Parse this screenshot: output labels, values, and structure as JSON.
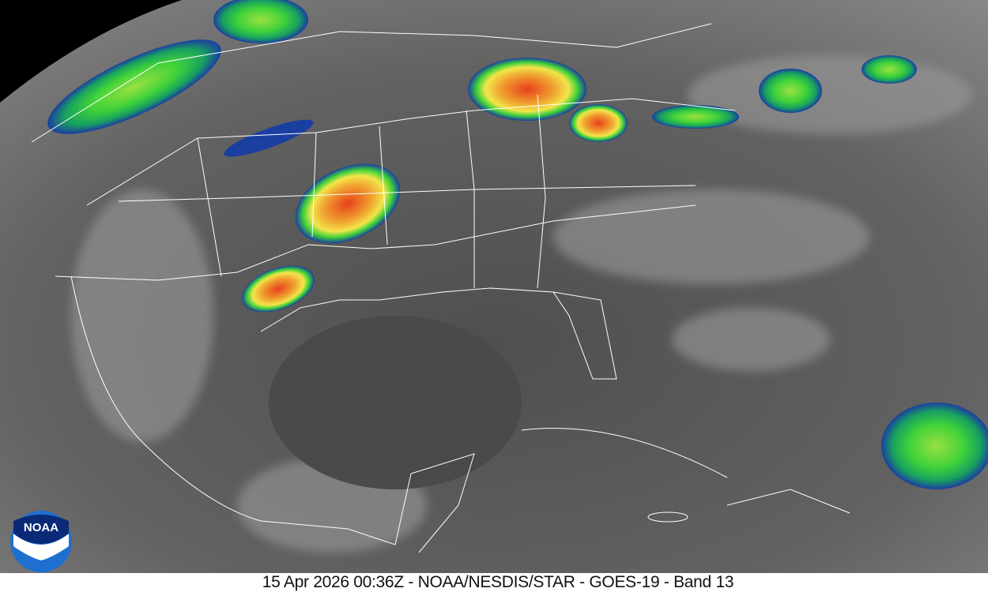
{
  "caption": "15 Apr 2026 00:36Z - NOAA/NESDIS/STAR - GOES-19 - Band 13",
  "logo": {
    "text": "NOAA"
  },
  "colors": {
    "background_gray": "#5a5a5a",
    "space": "#000000",
    "cold_cloud_blue": "#1a3fa0",
    "green": "#3fd23a",
    "yellow": "#f2e64a",
    "red": "#e8401c",
    "coastline": "#ffffff"
  }
}
